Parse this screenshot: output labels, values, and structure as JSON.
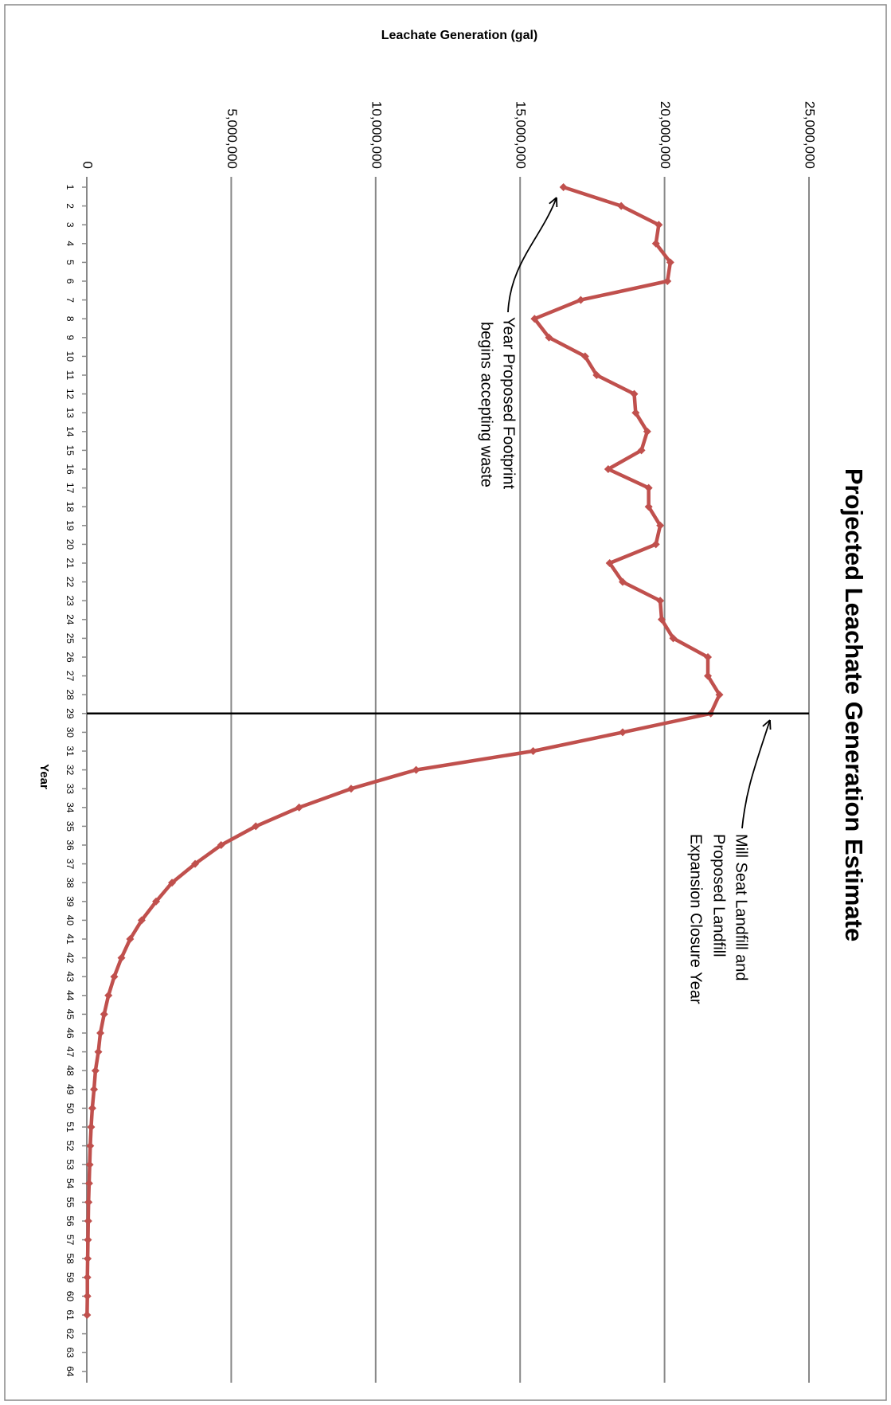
{
  "chart_data": {
    "type": "line",
    "title": "Projected Leachate Generation Estimate",
    "y_label": "Leachate Generation (gal)",
    "x_label": "Year",
    "categories": [
      1,
      2,
      3,
      4,
      5,
      6,
      7,
      8,
      9,
      10,
      11,
      12,
      13,
      14,
      15,
      16,
      17,
      18,
      19,
      20,
      21,
      22,
      23,
      24,
      25,
      26,
      27,
      28,
      29,
      30,
      31,
      32,
      33,
      34,
      35,
      36,
      37,
      38,
      39,
      40,
      41,
      42,
      43,
      44,
      45,
      46,
      47,
      48,
      49,
      50,
      51,
      52,
      53,
      54,
      55,
      56,
      57,
      58,
      59,
      60,
      61,
      62,
      63,
      64
    ],
    "series": [
      {
        "name": "Leachate Generation",
        "color": "#c0504d",
        "values": [
          16500000,
          18500000,
          19800000,
          19700000,
          20200000,
          20100000,
          17100000,
          15500000,
          16000000,
          17250000,
          17650000,
          18950000,
          19000000,
          19400000,
          19200000,
          18050000,
          19450000,
          19450000,
          19850000,
          19700000,
          18100000,
          18550000,
          19850000,
          19900000,
          20300000,
          21500000,
          21500000,
          21900000,
          21600000,
          18550000,
          15450000,
          11400000,
          9150000,
          7350000,
          5850000,
          4650000,
          3750000,
          2950000,
          2400000,
          1900000,
          1500000,
          1200000,
          950000,
          750000,
          600000,
          470000,
          400000,
          300000,
          250000,
          190000,
          150000,
          120000,
          100000,
          80000,
          60000,
          50000,
          40000,
          30000,
          20000,
          20000,
          10000,
          null,
          null,
          null
        ]
      }
    ],
    "ylim": [
      0,
      25000000
    ],
    "yticks": [
      0,
      {
        "value": 5000000,
        "label": "5,000,000"
      },
      {
        "value": 10000000,
        "label": "10,000,000"
      },
      {
        "value": 15000000,
        "label": "15,000,000"
      },
      {
        "value": 20000000,
        "label": "20,000,000"
      },
      {
        "value": 25000000,
        "label": "25,000,000"
      }
    ],
    "grid": true,
    "annotations": [
      {
        "text": [
          "Year Proposed Footprint",
          "begins accepting waste"
        ],
        "year": 1
      },
      {
        "text": [
          "Mill Seat Landfill and",
          "Proposed Landfill",
          "Expansion Closure Year"
        ],
        "year": 29
      }
    ]
  }
}
